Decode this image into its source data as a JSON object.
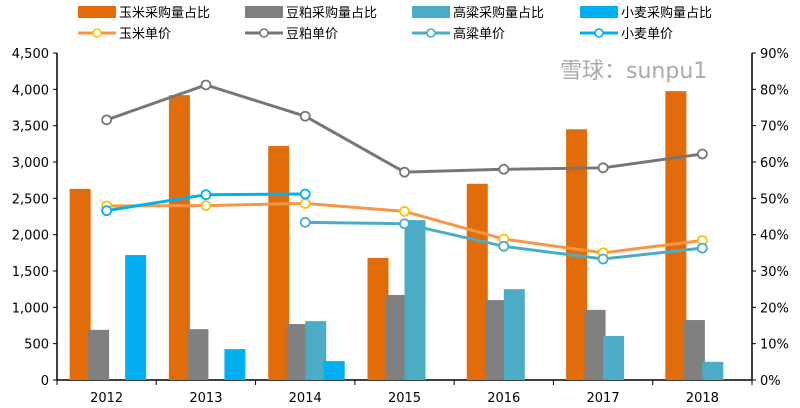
{
  "chart_data": {
    "type": "bar+line",
    "categories": [
      "2012",
      "2013",
      "2014",
      "2015",
      "2016",
      "2017",
      "2018"
    ],
    "bar_series": [
      {
        "name": "玉米采购量占比",
        "color": "#e36c0a",
        "values": [
          52.6,
          78.4,
          64.4,
          33.6,
          54.0,
          69.0,
          79.5
        ]
      },
      {
        "name": "豆粕采购量占比",
        "color": "#808080",
        "values": [
          13.8,
          14.0,
          15.4,
          23.4,
          22.0,
          19.3,
          16.5
        ]
      },
      {
        "name": "高粱采购量占比",
        "color": "#4bacc6",
        "values": [
          null,
          null,
          16.2,
          44.0,
          25.0,
          12.1,
          5.0
        ]
      },
      {
        "name": "小麦采购量占比",
        "color": "#00b0f0",
        "values": [
          34.4,
          8.5,
          5.2,
          null,
          null,
          null,
          null
        ]
      }
    ],
    "line_series": [
      {
        "name": "玉米单价",
        "color": "#f79646",
        "marker": "#ffc000",
        "values": [
          2395,
          2400,
          2430,
          2320,
          1940,
          1750,
          1920
        ]
      },
      {
        "name": "豆粕单价",
        "color": "#767676",
        "marker": "#767676",
        "values": [
          3580,
          4060,
          3630,
          2860,
          2900,
          2920,
          3110
        ]
      },
      {
        "name": "高粱单价",
        "color": "#4bacc6",
        "marker": "#4bacc6",
        "values": [
          null,
          null,
          2170,
          2150,
          1840,
          1665,
          1815
        ]
      },
      {
        "name": "小麦单价",
        "color": "#00b0f0",
        "marker": "#00b0f0",
        "values": [
          2330,
          2550,
          2560,
          null,
          null,
          null,
          null
        ]
      }
    ],
    "y_left": {
      "range": [
        0,
        4500
      ],
      "ticks": [
        "0",
        "500",
        "1,000",
        "1,500",
        "2,000",
        "2,500",
        "3,000",
        "3,500",
        "4,000",
        "4,500"
      ]
    },
    "y_right": {
      "range": [
        0,
        90
      ],
      "ticks": [
        "0%",
        "10%",
        "20%",
        "30%",
        "40%",
        "50%",
        "60%",
        "70%",
        "80%",
        "90%"
      ]
    },
    "legend_position": "top",
    "watermark": "雪球：sunpu1"
  }
}
